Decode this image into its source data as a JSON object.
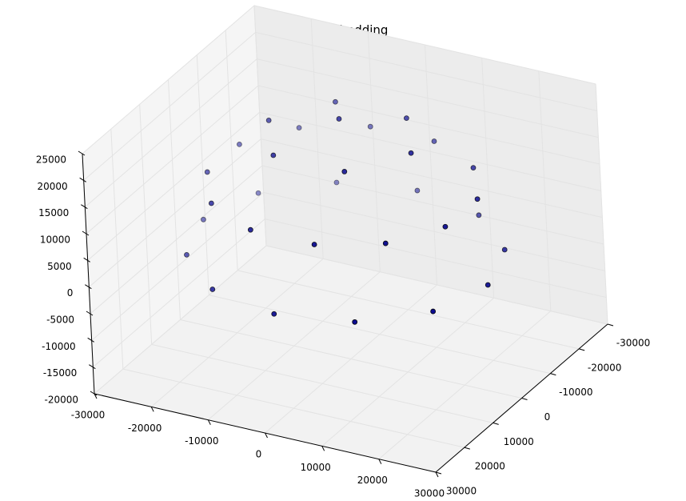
{
  "chart_data": {
    "type": "scatter3d",
    "title": "3D Embedding",
    "x": [
      25000,
      21651,
      12500,
      0,
      -12500,
      -21651,
      -25000,
      -21651,
      -12500,
      0,
      12500,
      21651,
      20914,
      15309,
      5604,
      -5604,
      -15309,
      -20914,
      -20914,
      -15309,
      -5604,
      5604,
      15309,
      20914,
      12500,
      6250,
      -6250,
      -12500,
      -6250,
      6250,
      0
    ],
    "y": [
      0,
      12500,
      21651,
      25000,
      21651,
      12500,
      0,
      -12500,
      -21651,
      -25000,
      -21651,
      -12500,
      5604,
      15309,
      20914,
      20914,
      15309,
      5604,
      -5604,
      -15309,
      -20914,
      -20914,
      -15309,
      -5604,
      0,
      10825,
      10825,
      0,
      -10825,
      -10825,
      0
    ],
    "z": [
      0,
      0,
      0,
      0,
      0,
      0,
      0,
      0,
      0,
      0,
      0,
      0,
      12500,
      12500,
      12500,
      12500,
      12500,
      12500,
      12500,
      12500,
      12500,
      12500,
      12500,
      12500,
      21651,
      21651,
      21651,
      21651,
      21651,
      21651,
      25000
    ],
    "color": "#00008b",
    "xlim": [
      -30000,
      30000
    ],
    "ylim": [
      -30000,
      30000
    ],
    "zlim": [
      -20000,
      25000
    ],
    "xticks": [
      -30000,
      -20000,
      -10000,
      0,
      10000,
      20000,
      30000
    ],
    "yticks": [
      -30000,
      -20000,
      -10000,
      0,
      10000,
      20000,
      30000
    ],
    "zticks": [
      -20000,
      -15000,
      -10000,
      -5000,
      0,
      5000,
      10000,
      15000,
      20000,
      25000
    ],
    "grid": true
  }
}
